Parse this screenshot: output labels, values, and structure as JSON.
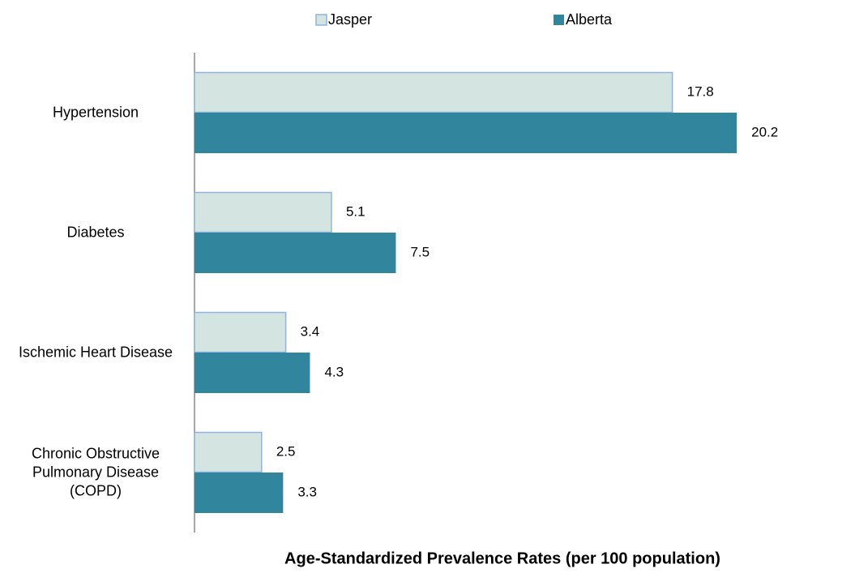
{
  "chart_data": {
    "type": "hbar",
    "title": "Age-Standardized Prevalence Rates (per 100 population)",
    "categories": [
      "Hypertension",
      "Diabetes",
      "Ischemic Heart Disease",
      "Chronic Obstructive Pulmonary Disease (COPD)"
    ],
    "series": [
      {
        "name": "Jasper",
        "color": "#d3e4e1",
        "stroke": "#8eb4e3",
        "values": [
          17.8,
          5.1,
          3.4,
          2.5
        ]
      },
      {
        "name": "Alberta",
        "color": "#31859c",
        "values": [
          20.2,
          7.5,
          4.3,
          3.3
        ]
      }
    ],
    "xlim": [
      0,
      24
    ]
  }
}
